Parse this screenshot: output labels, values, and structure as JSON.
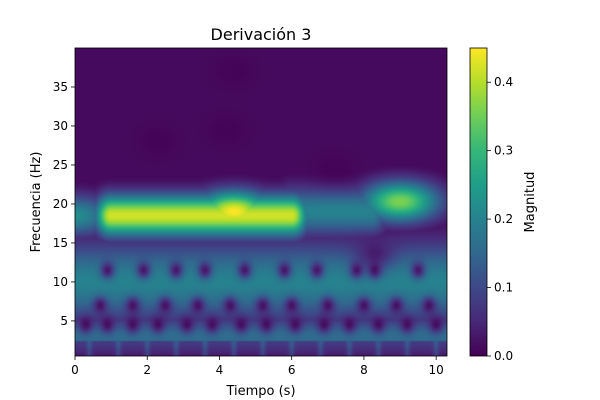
{
  "chart_data": {
    "type": "heatmap",
    "title": "Derivación 3",
    "xlabel": "Tiempo (s)",
    "ylabel": "Frecuencia (Hz)",
    "xlim": [
      0,
      10.3
    ],
    "ylim": [
      0.5,
      40
    ],
    "x_ticks": [
      0,
      2,
      4,
      6,
      8,
      10
    ],
    "y_ticks": [
      5,
      10,
      15,
      20,
      25,
      30,
      35
    ],
    "colormap": "viridis",
    "colorbar": {
      "label": "Magnitud",
      "range": [
        0,
        0.45
      ],
      "ticks": [
        0.0,
        0.1,
        0.2,
        0.3,
        0.4
      ],
      "tick_labels": [
        "0.0",
        "0.1",
        "0.2",
        "0.3",
        "0.4"
      ]
    },
    "features": [
      {
        "kind": "band",
        "t_start": 1.0,
        "t_end": 6.0,
        "f_center": 18.5,
        "f_halfwidth": 2.6,
        "magnitude": 0.42
      },
      {
        "kind": "blob",
        "t": 4.4,
        "f": 19.0,
        "magnitude": 0.45
      },
      {
        "kind": "blob",
        "t": 9.0,
        "f": 20.3,
        "magnitude": 0.36
      },
      {
        "kind": "blob",
        "t": 0.0,
        "f": 18.5,
        "magnitude": 0.22
      },
      {
        "kind": "band",
        "t_start": 6.0,
        "t_end": 8.2,
        "f_center": 19.0,
        "f_halfwidth": 3.0,
        "magnitude": 0.2
      },
      {
        "kind": "band",
        "t_start": 0.0,
        "t_end": 10.3,
        "f_center": 10.0,
        "f_halfwidth": 5.0,
        "magnitude": 0.2
      },
      {
        "kind": "band",
        "t_start": 0.0,
        "t_end": 10.3,
        "f_center": 3.0,
        "f_halfwidth": 2.5,
        "magnitude": 0.16
      }
    ],
    "minima_rows": [
      {
        "f": 11.5,
        "t": [
          0.9,
          1.9,
          2.8,
          3.6,
          4.7,
          5.8,
          6.7,
          7.8,
          8.3,
          9.5
        ]
      },
      {
        "f": 7.0,
        "t": [
          0.7,
          1.6,
          2.5,
          3.4,
          4.3,
          5.2,
          6.0,
          7.0,
          8.0,
          8.9,
          9.8
        ]
      },
      {
        "f": 4.5,
        "t": [
          0.3,
          0.9,
          1.6,
          2.3,
          3.1,
          3.8,
          4.6,
          5.3,
          6.1,
          6.9,
          7.6,
          8.4,
          9.2,
          10.0
        ]
      }
    ],
    "minima_patches": [
      {
        "t": 2.3,
        "f": 28.0
      },
      {
        "t": 4.2,
        "f": 29.5
      },
      {
        "t": 4.4,
        "f": 37.0
      },
      {
        "t": 7.2,
        "f": 24.5
      },
      {
        "t": 8.3,
        "f": 13.5
      }
    ]
  }
}
